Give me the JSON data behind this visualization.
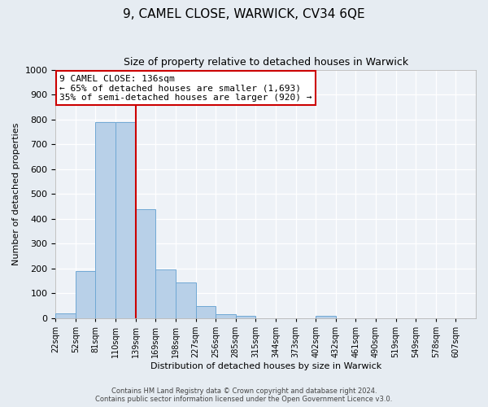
{
  "title": "9, CAMEL CLOSE, WARWICK, CV34 6QE",
  "subtitle": "Size of property relative to detached houses in Warwick",
  "xlabel": "Distribution of detached houses by size in Warwick",
  "ylabel": "Number of detached properties",
  "bin_labels": [
    "22sqm",
    "52sqm",
    "81sqm",
    "110sqm",
    "139sqm",
    "169sqm",
    "198sqm",
    "227sqm",
    "256sqm",
    "285sqm",
    "315sqm",
    "344sqm",
    "373sqm",
    "402sqm",
    "432sqm",
    "461sqm",
    "490sqm",
    "519sqm",
    "549sqm",
    "578sqm",
    "607sqm"
  ],
  "bar_values": [
    20,
    190,
    790,
    790,
    440,
    195,
    145,
    50,
    15,
    10,
    0,
    0,
    0,
    10,
    0,
    0,
    0,
    0,
    0,
    0,
    0
  ],
  "bar_color": "#B8D0E8",
  "bar_edgecolor": "#6FA8D4",
  "vline_x_index": 4,
  "vline_color": "#CC0000",
  "annotation_line1": "9 CAMEL CLOSE: 136sqm",
  "annotation_line2": "← 65% of detached houses are smaller (1,693)",
  "annotation_line3": "35% of semi-detached houses are larger (920) →",
  "annotation_box_edgecolor": "#CC0000",
  "annotation_box_facecolor": "#FFFFFF",
  "ylim": [
    0,
    1000
  ],
  "yticks": [
    0,
    100,
    200,
    300,
    400,
    500,
    600,
    700,
    800,
    900,
    1000
  ],
  "footer_line1": "Contains HM Land Registry data © Crown copyright and database right 2024.",
  "footer_line2": "Contains public sector information licensed under the Open Government Licence v3.0.",
  "bg_color": "#E6ECF2",
  "plot_bg_color": "#EEF2F7",
  "title_fontsize": 11,
  "subtitle_fontsize": 9,
  "tick_label_fontsize": 7,
  "axis_label_fontsize": 8,
  "annotation_fontsize": 8,
  "footer_fontsize": 6
}
